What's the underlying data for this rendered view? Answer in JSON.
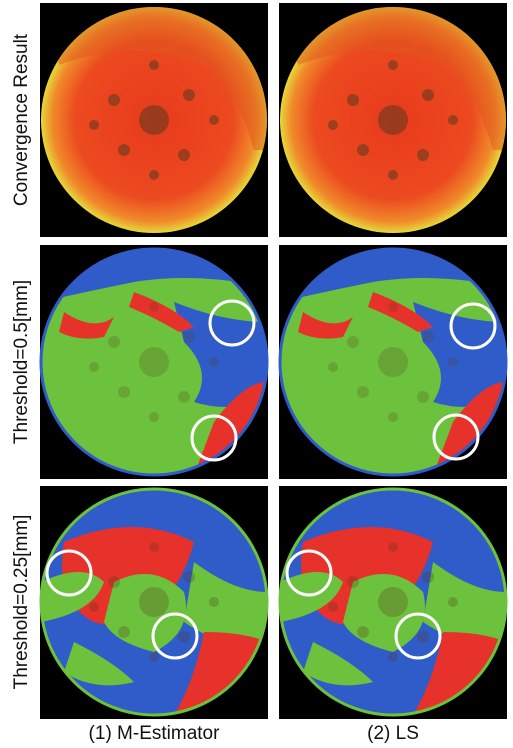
{
  "row_labels": [
    "Convergence Result",
    "Threshold=0.5[mm]",
    "Threshold=0.25[mm]"
  ],
  "column_labels": [
    "(1) M-Estimator",
    "(2) LS"
  ]
}
